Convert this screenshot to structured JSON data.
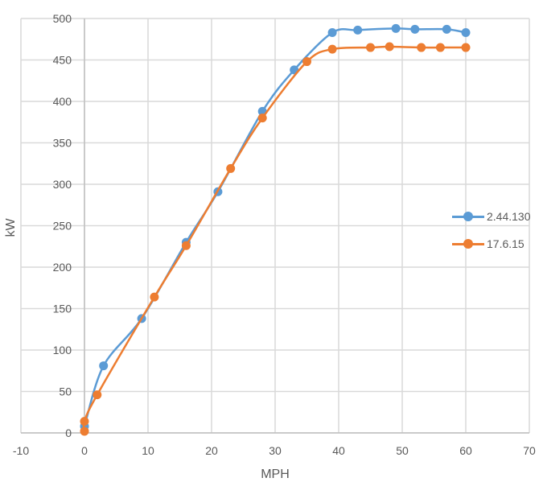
{
  "chart_data": {
    "type": "scatter",
    "title": "",
    "xlabel": "MPH",
    "ylabel": "kW",
    "xlim": [
      -10,
      70
    ],
    "ylim": [
      0,
      500
    ],
    "x_ticks": [
      -10,
      0,
      10,
      20,
      30,
      40,
      50,
      60,
      70
    ],
    "y_ticks": [
      0,
      50,
      100,
      150,
      200,
      250,
      300,
      350,
      400,
      450,
      500
    ],
    "grid": true,
    "legend_position": "right",
    "series": [
      {
        "name": "2.44.130",
        "color": "#5B9BD5",
        "smooth": true,
        "points": [
          [
            0,
            8
          ],
          [
            3,
            81
          ],
          [
            9,
            138
          ],
          [
            16,
            230
          ],
          [
            21,
            291
          ],
          [
            28,
            388
          ],
          [
            33,
            438
          ],
          [
            39,
            483
          ],
          [
            43,
            486
          ],
          [
            49,
            488
          ],
          [
            52,
            487
          ],
          [
            57,
            487
          ],
          [
            60,
            483
          ]
        ]
      },
      {
        "name": "17.6.15",
        "color": "#ED7D31",
        "smooth": true,
        "points": [
          [
            0,
            2
          ],
          [
            0,
            14
          ],
          [
            2,
            46
          ],
          [
            11,
            164
          ],
          [
            16,
            226
          ],
          [
            23,
            319
          ],
          [
            28,
            380
          ],
          [
            35,
            448
          ],
          [
            39,
            463
          ],
          [
            45,
            465
          ],
          [
            48,
            466
          ],
          [
            53,
            465
          ],
          [
            56,
            465
          ],
          [
            60,
            465
          ]
        ]
      }
    ]
  },
  "colors": {
    "grid": "#D9D9D9",
    "axis": "#BFBFBF",
    "text": "#595959"
  }
}
